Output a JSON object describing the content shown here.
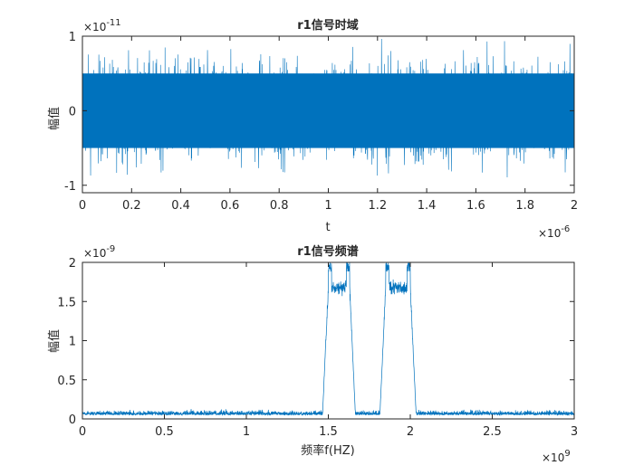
{
  "colors": {
    "series": "#0072BD",
    "axis": "#262626",
    "background": "#ffffff"
  },
  "chart_data": [
    {
      "type": "line",
      "title": "r1信号时域",
      "xlabel": "t",
      "ylabel": "幅值",
      "x_exponent_label": "×10",
      "x_exponent_power": "-6",
      "y_exponent_label": "×10",
      "y_exponent_power": "-11",
      "xlim": [
        0,
        2
      ],
      "ylim": [
        -1.1,
        1.0
      ],
      "x_ticks": [
        "0",
        "0.2",
        "0.4",
        "0.6",
        "0.8",
        "1",
        "1.2",
        "1.4",
        "1.6",
        "1.8",
        "2"
      ],
      "y_ticks": [
        "-1",
        "0",
        "1"
      ],
      "series": [
        {
          "description": "dense noise-like signal",
          "envelope_min": -1.0,
          "envelope_max": 1.0
        }
      ],
      "grid": false
    },
    {
      "type": "line",
      "title": "r1信号频谱",
      "xlabel": "频率f(HZ)",
      "ylabel": "幅值",
      "x_exponent_label": "×10",
      "x_exponent_power": "9",
      "y_exponent_label": "×10",
      "y_exponent_power": "-9",
      "xlim": [
        0,
        3
      ],
      "ylim": [
        0,
        2
      ],
      "x_ticks": [
        "0",
        "0.5",
        "1",
        "1.5",
        "2",
        "2.5",
        "3"
      ],
      "y_ticks": [
        "0",
        "0.5",
        "1",
        "1.5",
        "2"
      ],
      "bands": [
        {
          "start": 1.5,
          "end": 1.63,
          "level": 1.68,
          "edge_peak": 2.0
        },
        {
          "start": 1.85,
          "end": 2.0,
          "level": 1.68,
          "edge_peak": 2.0
        }
      ],
      "noise_floor": 0.05,
      "grid": false
    }
  ]
}
